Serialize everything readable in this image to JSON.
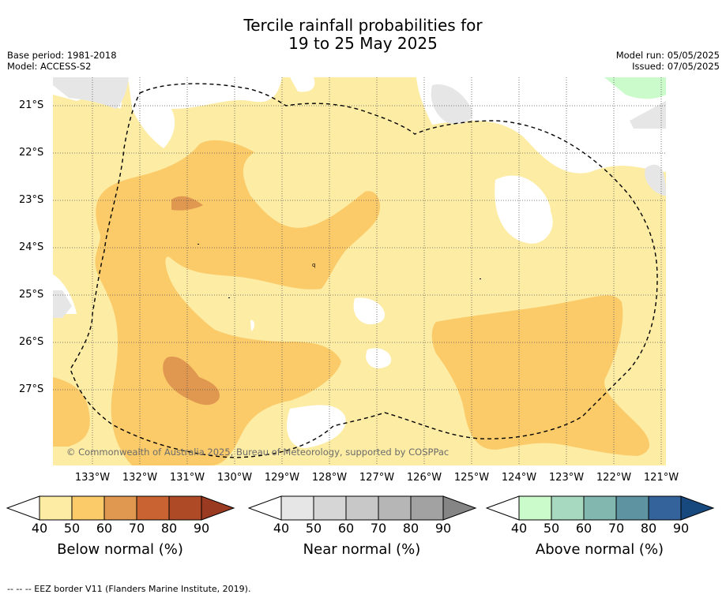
{
  "title": {
    "line1": "Tercile rainfall probabilities for",
    "line2": "19 to 25 May 2025"
  },
  "meta": {
    "base_period": "Base period: 1981-2018",
    "model": "Model: ACCESS-S2",
    "model_run": "Model run: 05/05/2025",
    "issued": "Issued: 07/05/2025"
  },
  "map": {
    "y_labels": [
      "21°S",
      "22°S",
      "23°S",
      "24°S",
      "25°S",
      "26°S",
      "27°S"
    ],
    "x_labels": [
      "133°W",
      "132°W",
      "131°W",
      "130°W",
      "129°W",
      "128°W",
      "127°W",
      "126°W",
      "125°W",
      "124°W",
      "123°W",
      "122°W",
      "121°W"
    ],
    "copyright": "© Commonwealth of Australia 2025, Bureau of Meteorology, supported by COSPPac",
    "colors": {
      "below_40": "#fdeca4",
      "below_50": "#fbcb6a",
      "below_60": "#e0974f",
      "near_40": "#e6e6e6",
      "above_40": "#cbfacb"
    }
  },
  "colorbars": [
    {
      "label": "Below normal (%)",
      "ticks": [
        "40",
        "50",
        "60",
        "70",
        "80",
        "90"
      ],
      "colors": [
        "#fdeca4",
        "#fbcb6a",
        "#e0974f",
        "#c96432",
        "#ae4a26",
        "#9a3a20"
      ]
    },
    {
      "label": "Near normal (%)",
      "ticks": [
        "40",
        "50",
        "60",
        "70",
        "80",
        "90"
      ],
      "colors": [
        "#e6e6e6",
        "#d6d6d6",
        "#c8c8c8",
        "#b6b6b6",
        "#a2a2a2",
        "#858585"
      ]
    },
    {
      "label": "Above normal (%)",
      "ticks": [
        "40",
        "50",
        "60",
        "70",
        "80",
        "90"
      ],
      "colors": [
        "#cbfacb",
        "#a6d9bf",
        "#82b7b0",
        "#5e93a2",
        "#34629a",
        "#17487e"
      ]
    }
  ],
  "footnote": "-- -- -- EEZ border V11 (Flanders Marine Institute, 2019)."
}
